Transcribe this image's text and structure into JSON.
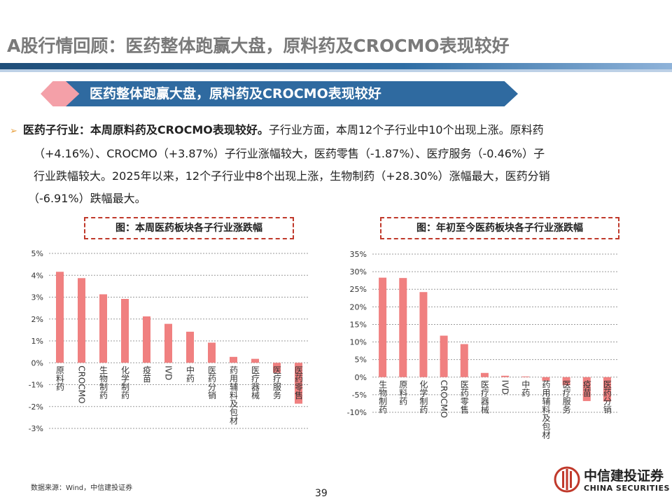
{
  "title": "A股行情回顾：医药整体跑赢大盘，原料药及CROCMO表现较好",
  "banner": "医药整体跑赢大盘，原料药及CROCMO表现较好",
  "bullet": {
    "marker": "➢",
    "lead": "医药子行业：本周原料药及CROCMO表现较好。",
    "line1_rest": "子行业方面，本周12个子行业中10个出现上涨。原料药",
    "line2": "（+4.16%）、CROCMO（+3.87%）子行业涨幅较大，医药零售（-1.87%）、医疗服务（-0.46%）子",
    "line3": "行业跌幅较大。2025年以来，12个子行业中8个出现上涨，生物制药（+28.30%）涨幅最大，医药分销",
    "line4": "（-6.91%）跌幅最大。"
  },
  "chart_data": [
    {
      "type": "bar",
      "title": "图：本周医药板块各子行业涨跌幅",
      "xlabel": "",
      "ylabel": "",
      "categories": [
        "原料药",
        "CROCMO",
        "生物制药",
        "化学制药",
        "疫苗",
        "IVD",
        "中药",
        "医药分销",
        "药用辅料及包材",
        "医疗器械",
        "医疗服务",
        "医药零售"
      ],
      "values": [
        4.16,
        3.87,
        3.13,
        2.92,
        2.12,
        1.78,
        1.42,
        0.92,
        0.27,
        0.18,
        -0.46,
        -1.87
      ],
      "ylim": [
        -3,
        5
      ],
      "yticks": [
        "5%",
        "4%",
        "3%",
        "2%",
        "1%",
        "0%",
        "-1%",
        "-2%",
        "-3%"
      ],
      "grid": true,
      "bar_color": "#f08080"
    },
    {
      "type": "bar",
      "title": "图：年初至今医药板块各子行业涨跌幅",
      "xlabel": "",
      "ylabel": "",
      "categories": [
        "生物制药",
        "原料药",
        "化学制药",
        "CROCMO",
        "医药零售",
        "医疗器械",
        "IVD",
        "中药",
        "药用辅料及包材",
        "医疗服务",
        "疫苗",
        "医药分销"
      ],
      "values": [
        28.3,
        28.2,
        24.2,
        11.8,
        9.4,
        1.2,
        0.4,
        0.2,
        -1.0,
        -2.3,
        -6.8,
        -6.91
      ],
      "ylim": [
        -10,
        35
      ],
      "yticks": [
        "35%",
        "30%",
        "25%",
        "20%",
        "15%",
        "10%",
        "5%",
        "0%",
        "-5%",
        "-10%"
      ],
      "grid": true,
      "bar_color": "#f08080"
    }
  ],
  "footer": {
    "source": "数据来源：Wind，中信建投证券",
    "page": "39",
    "logo_cn": "中信建投证券",
    "logo_en": "CHINA SECURITIES",
    "logo_color": "#c0392b"
  }
}
